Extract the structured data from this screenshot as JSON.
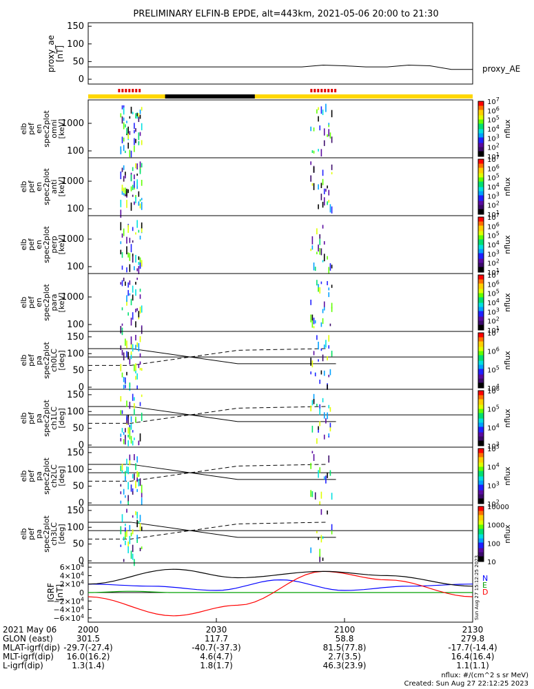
{
  "title": "PRELIMINARY ELFIN-B EPDE, alt=443km, 2021-05-06 20:00 to 21:30",
  "proxy_panel": {
    "ylabel_lines": [
      "proxy_ae",
      "[nT]"
    ],
    "series_label": "proxy_AE",
    "ticks": [
      "0",
      "50",
      "100",
      "150"
    ]
  },
  "spec_panels": [
    {
      "ylabel_lines": [
        "elb",
        "pef",
        "en",
        "spec2plot",
        "omni",
        "[keV]"
      ],
      "ticks": [
        "100",
        "1000"
      ],
      "cb_label": "nflux",
      "cb_ticks": [
        "10",
        "10",
        "10",
        "10",
        "10",
        "10",
        "10"
      ],
      "cb_exps": [
        "1",
        "2",
        "3",
        "4",
        "5",
        "6",
        "7"
      ]
    },
    {
      "ylabel_lines": [
        "elb",
        "pef",
        "en",
        "spec2plot",
        "anti",
        "[keV]"
      ],
      "ticks": [
        "100",
        "1000"
      ],
      "cb_label": "nflux",
      "cb_ticks": [
        "10",
        "10",
        "10",
        "10",
        "10",
        "10",
        "10"
      ],
      "cb_exps": [
        "1",
        "2",
        "3",
        "4",
        "5",
        "6",
        "7"
      ]
    },
    {
      "ylabel_lines": [
        "elb",
        "pef",
        "en",
        "spec2plot",
        "perp",
        "[keV]"
      ],
      "ticks": [
        "100",
        "1000"
      ],
      "cb_label": "nflux",
      "cb_ticks": [
        "10",
        "10",
        "10",
        "10",
        "10",
        "10",
        "10"
      ],
      "cb_exps": [
        "1",
        "2",
        "3",
        "4",
        "5",
        "6",
        "7"
      ]
    },
    {
      "ylabel_lines": [
        "elb",
        "pef",
        "en",
        "spec2plot",
        "para",
        "[keV]"
      ],
      "ticks": [
        "100",
        "1000"
      ],
      "cb_label": "nflux",
      "cb_ticks": [
        "10",
        "10",
        "10",
        "10",
        "10",
        "10",
        "10"
      ],
      "cb_exps": [
        "1",
        "2",
        "3",
        "4",
        "5",
        "6",
        "7"
      ]
    }
  ],
  "pa_panels": [
    {
      "ylabel_lines": [
        "elb",
        "pef",
        "pa",
        "spec2plot",
        "ch0LC",
        "[deg]"
      ],
      "ticks": [
        "0",
        "50",
        "100",
        "150"
      ],
      "cb_label": "nflux",
      "cb_ticks": [
        "10",
        "10",
        "10",
        "10"
      ],
      "cb_exps": [
        "4",
        "5",
        "6",
        "7"
      ]
    },
    {
      "ylabel_lines": [
        "elb",
        "pef",
        "pa",
        "spec2plot",
        "ch1LC",
        "[deg]"
      ],
      "ticks": [
        "0",
        "50",
        "100",
        "150"
      ],
      "cb_label": "nflux",
      "cb_ticks": [
        "10",
        "10",
        "10",
        "10"
      ],
      "cb_exps": [
        "3",
        "4",
        "5",
        "6"
      ]
    },
    {
      "ylabel_lines": [
        "elb",
        "pef",
        "pa",
        "spec2plot",
        "ch2LC",
        "[deg]"
      ],
      "ticks": [
        "0",
        "50",
        "100",
        "150"
      ],
      "cb_label": "nflux",
      "cb_ticks": [
        "10",
        "10",
        "10",
        "10"
      ],
      "cb_exps": [
        "2",
        "3",
        "4",
        "5"
      ]
    },
    {
      "ylabel_lines": [
        "elb",
        "pef",
        "pa",
        "spec2plot",
        "ch3LC",
        "[deg]"
      ],
      "ticks": [
        "0",
        "50",
        "100",
        "150"
      ],
      "cb_label": "nflux",
      "cb_ticks": [
        "10",
        "100",
        "1000",
        "10000"
      ],
      "cb_exps": [
        "",
        "",
        "",
        ""
      ]
    }
  ],
  "igrf_panel": {
    "ylabel_lines": [
      "IGRF",
      "[nT]"
    ],
    "ticks_main": [
      "0",
      "2×10",
      "4×10",
      "6×10",
      "−2×10",
      "−4×10",
      "−6×10"
    ],
    "tick_exp": "4",
    "legend": [
      "N",
      "E",
      "D"
    ],
    "colors": {
      "N": "#0000ff",
      "E": "#00a000",
      "D": "#ff0000",
      "total": "#000000"
    },
    "side_note": "Sun Aug 27 15:12:25 2023"
  },
  "footer": {
    "rows": [
      {
        "label": "2021 May 06",
        "values": [
          "2000",
          "2030",
          "2100",
          "2130"
        ]
      },
      {
        "label": "GLON (east)",
        "values": [
          "301.5",
          "117.7",
          "58.8",
          "279.8"
        ]
      },
      {
        "label": "MLAT-igrf(dip)",
        "values": [
          "-29.7(-27.4)",
          "-40.7(-37.3)",
          "81.5(77.8)",
          "-17.7(-14.4)"
        ]
      },
      {
        "label": "MLT-igrf(dip)",
        "values": [
          "16.0(16.2)",
          "4.6(4.7)",
          "2.7(3.5)",
          "16.4(16.4)"
        ]
      },
      {
        "label": "L-igrf(dip)",
        "values": [
          "1.3(1.4)",
          "1.8(1.7)",
          "46.3(23.9)",
          "1.1(1.1)"
        ]
      }
    ],
    "unit_note": "nflux: #/(cm^2 s sr MeV)",
    "created": "Created: Sun Aug 27 22:12:25 2023"
  },
  "chart_data": {
    "type": "line",
    "x_time_ticks": [
      "2000",
      "2030",
      "2100",
      "2130"
    ],
    "xlim": [
      "20:00",
      "21:30"
    ],
    "proxy_ae": {
      "x_minutes": [
        0,
        10,
        20,
        30,
        40,
        50,
        55,
        60,
        65,
        70,
        75,
        80,
        85,
        90
      ],
      "values": [
        35,
        35,
        35,
        35,
        35,
        35,
        40,
        38,
        35,
        35,
        40,
        38,
        28,
        28
      ],
      "ylim": [
        0,
        160
      ]
    },
    "science_zones": {
      "red_zones_minutes": [
        [
          7,
          12
        ],
        [
          52,
          58
        ]
      ],
      "black_zone_minutes": [
        18,
        39
      ]
    },
    "igrf": {
      "ylim": [
        -70000,
        70000
      ],
      "series": [
        {
          "name": "N",
          "x_minutes": [
            0,
            15,
            30,
            45,
            60,
            75,
            90
          ],
          "values": [
            20000,
            15000,
            5000,
            30000,
            5000,
            15000,
            20000
          ]
        },
        {
          "name": "E",
          "x_minutes": [
            0,
            10,
            20,
            45,
            60,
            90
          ],
          "values": [
            0,
            3000,
            0,
            0,
            0,
            0
          ]
        },
        {
          "name": "D",
          "x_minutes": [
            0,
            20,
            35,
            55,
            70,
            90
          ],
          "values": [
            -10000,
            -55000,
            -30000,
            50000,
            30000,
            -10000
          ]
        },
        {
          "name": "total",
          "x_minutes": [
            0,
            20,
            35,
            55,
            70,
            90
          ],
          "values": [
            20000,
            55000,
            35000,
            50000,
            40000,
            15000
          ]
        }
      ]
    }
  }
}
